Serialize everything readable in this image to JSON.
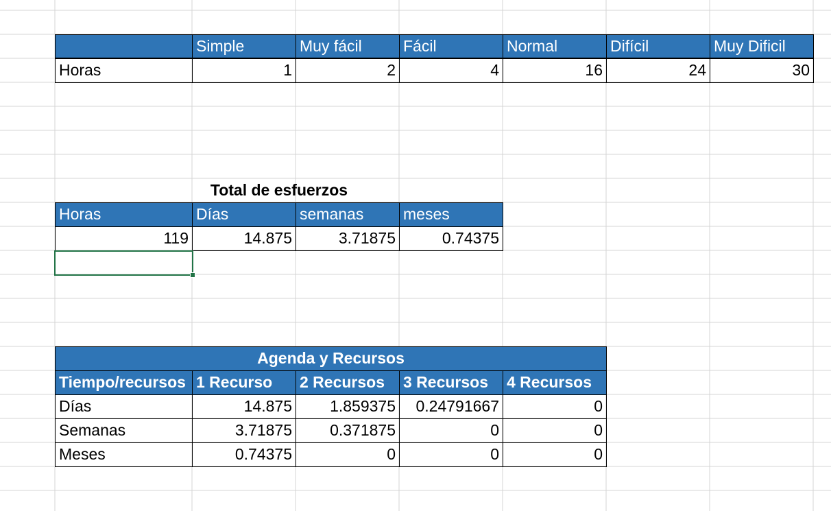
{
  "grid": {
    "line_color": "#d4d4d4",
    "header_fill": "#2f75b6",
    "selection_color": "#217346"
  },
  "difficulty_table": {
    "headers": [
      "",
      "Simple",
      "Muy fácil",
      "Fácil",
      "Normal",
      "Difícil",
      "Muy Dificil"
    ],
    "row_label": "Horas",
    "values": [
      "1",
      "2",
      "4",
      "16",
      "24",
      "30"
    ]
  },
  "total_effort": {
    "title": "Total de esfuerzos",
    "headers": [
      "Horas",
      "Días",
      "semanas",
      "meses"
    ],
    "values": [
      "119",
      "14.875",
      "3.71875",
      "0.74375"
    ]
  },
  "schedule": {
    "title": "Agenda y Recursos",
    "headers": [
      "Tiempo/recursos",
      "1 Recurso",
      "2 Recursos",
      "3 Recursos",
      "4 Recursos"
    ],
    "rows": [
      {
        "label": "Días",
        "values": [
          "14.875",
          "1.859375",
          "0.24791667",
          "0"
        ]
      },
      {
        "label": "Semanas",
        "values": [
          "3.71875",
          "0.371875",
          "0",
          "0"
        ]
      },
      {
        "label": "Meses",
        "values": [
          "0.74375",
          "0",
          "0",
          "0"
        ]
      }
    ]
  }
}
